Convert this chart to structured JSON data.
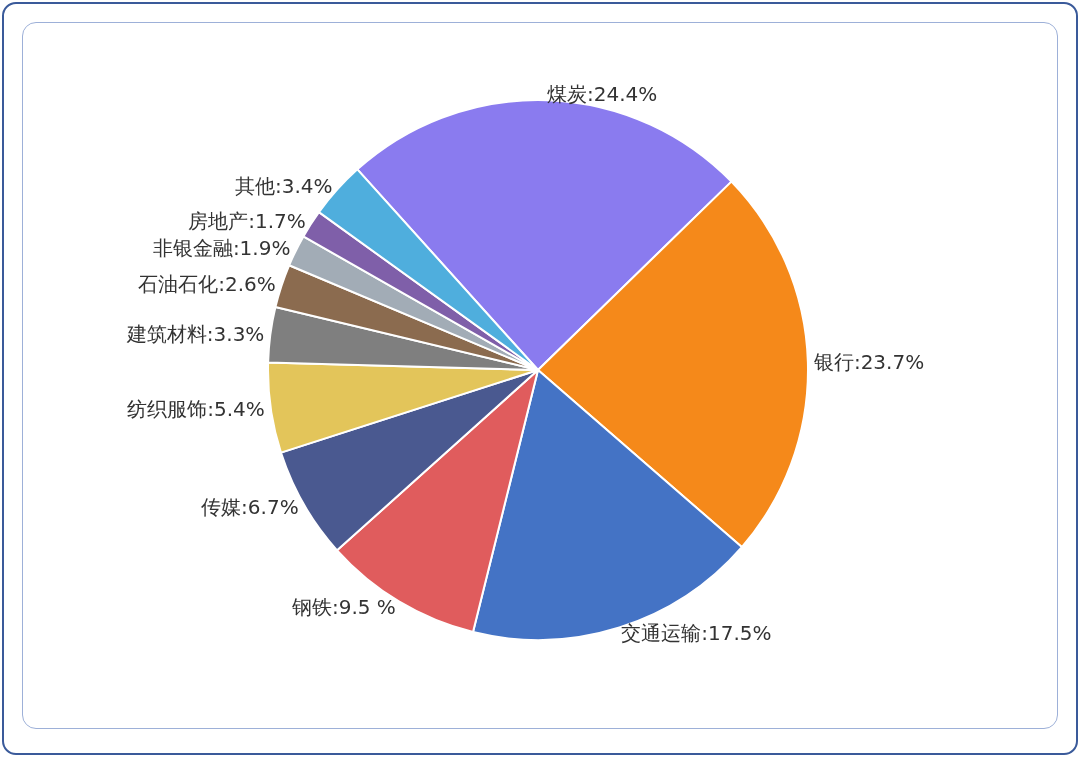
{
  "chart_data": {
    "type": "pie",
    "categories": [
      "煤炭",
      "银行",
      "交通运输",
      "钢铁",
      "传媒",
      "纺织服饰",
      "建筑材料",
      "石油石化",
      "非银金融",
      "房地产",
      "其他"
    ],
    "values": [
      24.4,
      23.7,
      17.5,
      9.5,
      6.7,
      5.4,
      3.3,
      2.6,
      1.9,
      1.7,
      3.4
    ],
    "value_labels": [
      "24.4%",
      "23.7%",
      "17.5%",
      "9.5 %",
      "6.7%",
      "5.4%",
      "3.3%",
      "2.6%",
      "1.9%",
      "1.7%",
      "3.4%"
    ],
    "colors": [
      "#8a7bef",
      "#f5891a",
      "#4473c5",
      "#e05c5d",
      "#4a5990",
      "#e3c55a",
      "#7f7f7f",
      "#8b6b4f",
      "#a2acb6",
      "#7f5fa9",
      "#4faedd"
    ],
    "legend": false
  }
}
